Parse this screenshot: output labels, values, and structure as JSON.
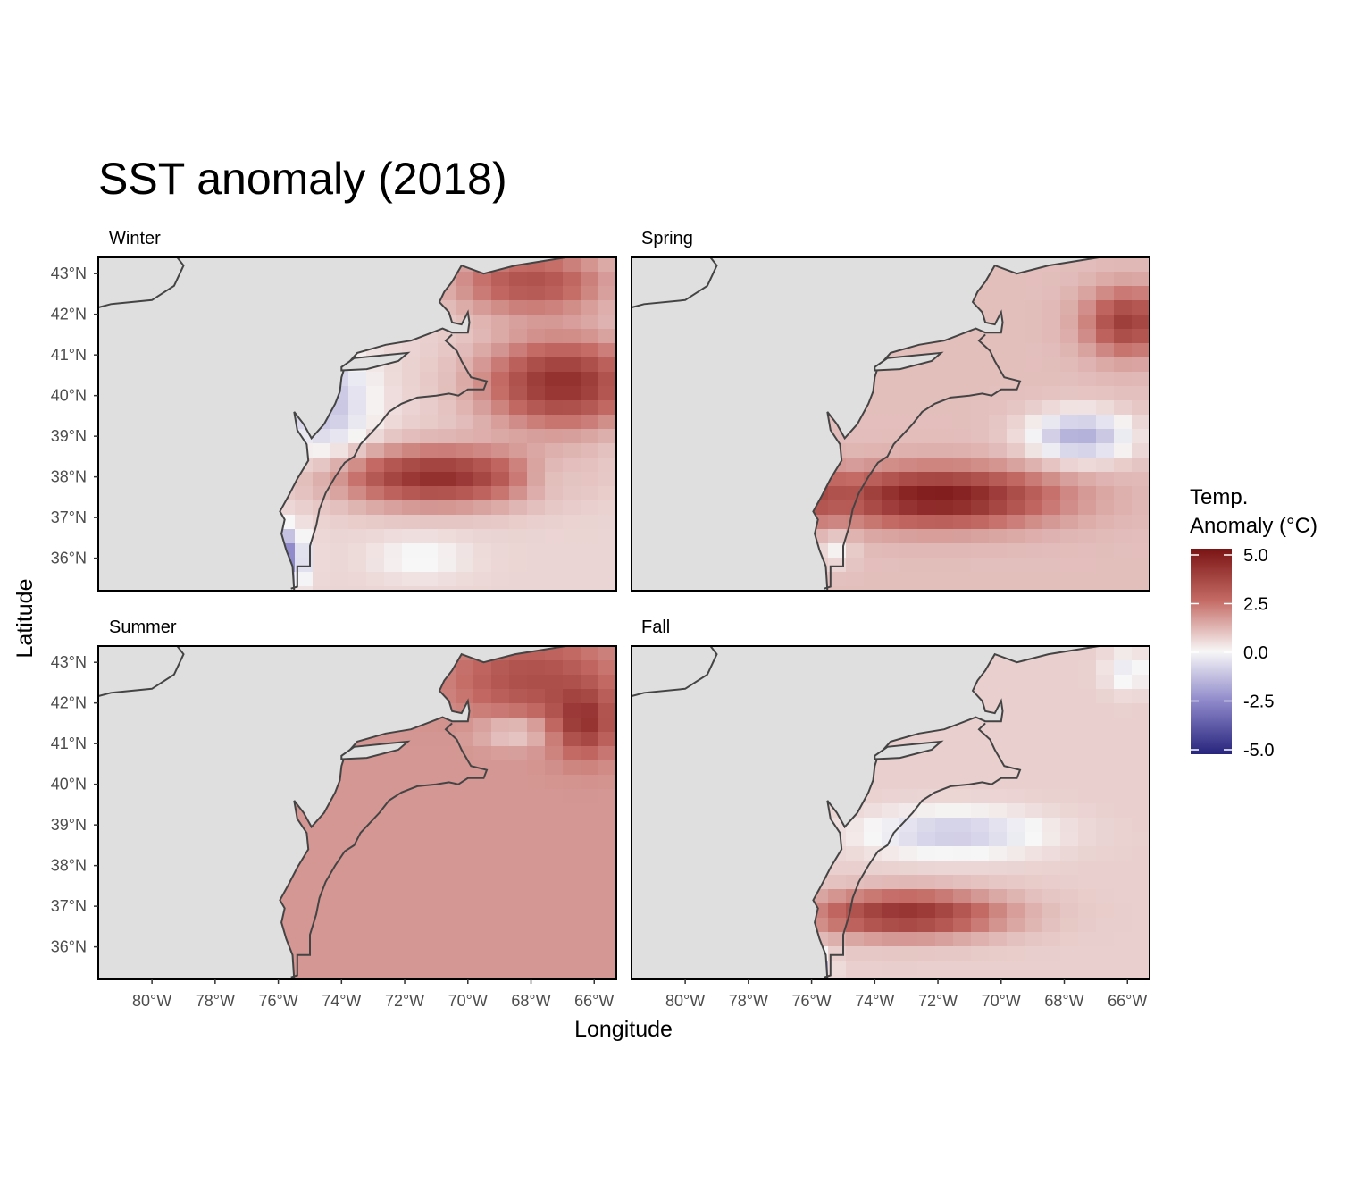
{
  "title": "SST anomaly (2018)",
  "x_axis": {
    "label": "Longitude",
    "ticks": [
      "80°W",
      "78°W",
      "76°W",
      "74°W",
      "72°W",
      "70°W",
      "68°W",
      "66°W"
    ]
  },
  "y_axis": {
    "label": "Latitude",
    "ticks": [
      "43°N",
      "42°N",
      "41°N",
      "40°N",
      "39°N",
      "38°N",
      "37°N",
      "36°N"
    ]
  },
  "panels": [
    {
      "name": "Winter"
    },
    {
      "name": "Spring"
    },
    {
      "name": "Summer"
    },
    {
      "name": "Fall"
    }
  ],
  "legend": {
    "title_line1": "Temp.",
    "title_line2": "Anomaly (°C)",
    "ticks": [
      "5.0",
      "2.5",
      "0.0",
      "-2.5",
      "-5.0"
    ],
    "range": [
      -5,
      5
    ]
  },
  "colors": {
    "land": "#dfdfdf",
    "warm": "#7a1414",
    "neutral": "#f7f7f7",
    "cool": "#27257d",
    "coast": "#444444"
  },
  "chart_data": {
    "type": "heatmap",
    "title": "SST anomaly (2018)",
    "xlabel": "Longitude",
    "ylabel": "Latitude",
    "xlim": [
      -81.7,
      -65.3
    ],
    "ylim": [
      35.2,
      43.4
    ],
    "facets": [
      "Winter",
      "Spring",
      "Summer",
      "Fall"
    ],
    "value_range": [
      -5,
      5
    ]
  }
}
